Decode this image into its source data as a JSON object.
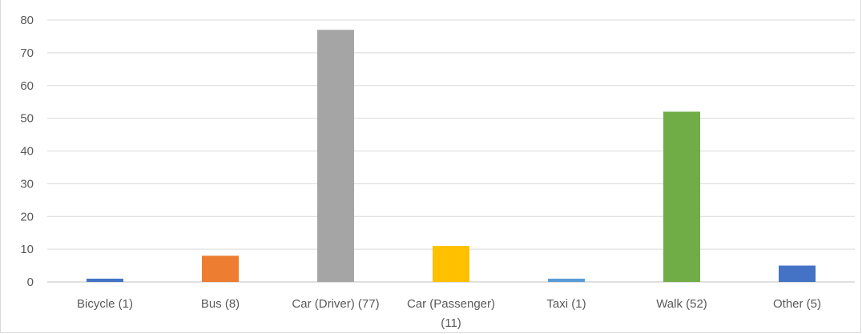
{
  "chart_data": {
    "type": "bar",
    "categories": [
      [
        "Bicycle (1)"
      ],
      [
        "Bus (8)"
      ],
      [
        "Car (Driver) (77)"
      ],
      [
        "Car (Passenger)",
        "(11)"
      ],
      [
        "Taxi (1)"
      ],
      [
        "Walk (52)"
      ],
      [
        "Other (5)"
      ]
    ],
    "values": [
      1,
      8,
      77,
      11,
      1,
      52,
      5
    ],
    "colors": [
      "#4472c4",
      "#ed7d31",
      "#a5a5a5",
      "#ffc000",
      "#5b9bd5",
      "#70ad47",
      "#4472c4"
    ],
    "yticks": [
      0,
      10,
      20,
      30,
      40,
      50,
      60,
      70,
      80
    ],
    "ylim": [
      0,
      80
    ],
    "grid": true,
    "legend": "none",
    "title": "",
    "xlabel": "",
    "ylabel": ""
  }
}
